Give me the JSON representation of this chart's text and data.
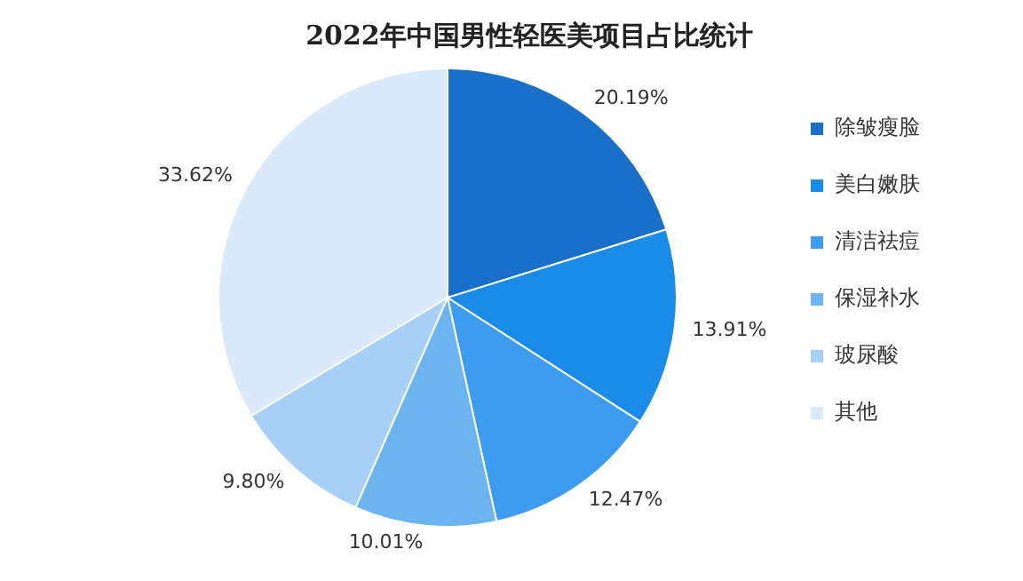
{
  "chart_data": {
    "type": "pie",
    "title": "2022年中国男性轻医美项目占比统计",
    "categories": [
      "除皱瘦脸",
      "美白嫩肤",
      "清洁祛痘",
      "保湿补水",
      "玻尿酸",
      "其他"
    ],
    "values": [
      20.19,
      13.91,
      12.47,
      10.01,
      9.8,
      33.62
    ],
    "value_labels": [
      "20.19%",
      "13.91%",
      "12.47%",
      "10.01%",
      "9.80%",
      "33.62%"
    ],
    "colors": [
      "#1a6fc9",
      "#1a8ce8",
      "#3d9bf0",
      "#6cb4f0",
      "#a6d0f5",
      "#dbeafa"
    ],
    "legend": "right"
  }
}
